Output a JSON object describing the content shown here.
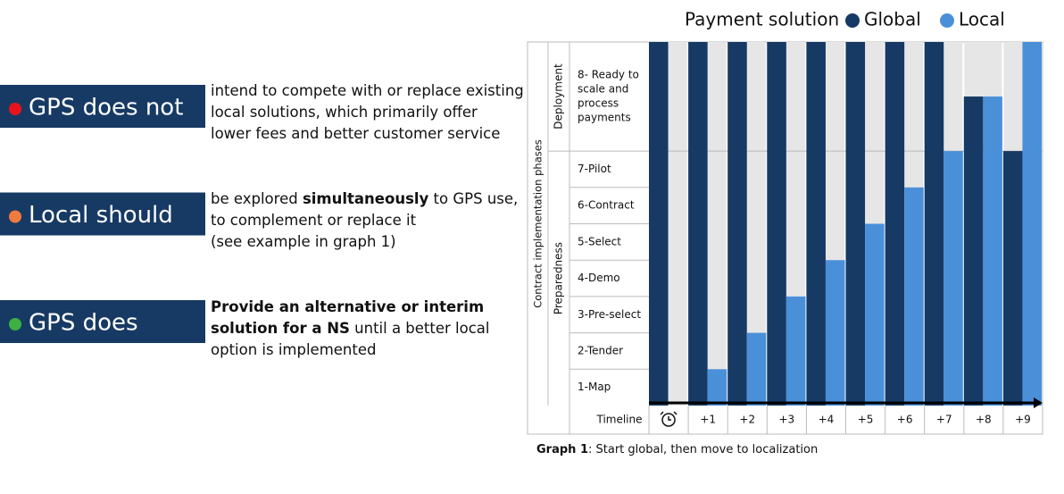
{
  "notes": [
    {
      "label": "GPS does not",
      "dot": "#e8141b",
      "lines": [
        [
          {
            "text": "intend to compete with or replace existing"
          }
        ],
        [
          {
            "text": "local solutions, which primarily offer"
          }
        ],
        [
          {
            "text": "lower fees and better customer service"
          }
        ]
      ]
    },
    {
      "label": "Local should",
      "dot": "#f07b3f",
      "lines": [
        [
          {
            "text": "be explored "
          },
          {
            "text": "simultaneously",
            "bold": true
          },
          {
            "text": " to GPS use,"
          }
        ],
        [
          {
            "text": "to complement or replace it"
          }
        ],
        [
          {
            "text": "(see example in graph 1)"
          }
        ]
      ]
    },
    {
      "label": "GPS does",
      "dot": "#3cb043",
      "lines": [
        [
          {
            "text": "Provide an alternative or interim",
            "bold": true
          }
        ],
        [
          {
            "text": "solution for a NS",
            "bold": true
          },
          {
            "text": " until a better local"
          }
        ],
        [
          {
            "text": "option is implemented"
          }
        ]
      ]
    }
  ],
  "chart_data": {
    "type": "bar",
    "legend_title": "Payment solution",
    "x_label": "Timeline",
    "y_label": "Contract implementation phases",
    "phase_groups": [
      {
        "label": "Deployment"
      },
      {
        "label": "Preparedness"
      }
    ],
    "phases": [
      [
        "1-Map"
      ],
      [
        "2-Tender"
      ],
      [
        "3-Pre-select"
      ],
      [
        "4-Demo"
      ],
      [
        "5-Select"
      ],
      [
        "6-Contract"
      ],
      [
        "7-Pilot"
      ],
      [
        "8- Ready to",
        "scale and",
        "process",
        "payments"
      ]
    ],
    "categories": [
      null,
      "+1",
      "+2",
      "+3",
      "+4",
      "+5",
      "+6",
      "+7",
      "+8",
      "+9"
    ],
    "ylim": [
      0,
      10
    ],
    "series": [
      {
        "name": "Global",
        "color": "#173a64",
        "values": [
          10,
          10,
          10,
          10,
          10,
          10,
          10,
          10,
          8.5,
          7
        ]
      },
      {
        "name": "Local",
        "color": "#4a90d9",
        "values": [
          0,
          1,
          2,
          3,
          4,
          5,
          6,
          7,
          8.5,
          10
        ]
      }
    ],
    "caption": [
      {
        "text": "Graph 1",
        "bold": true
      },
      {
        "text": ": Start global, then move to localization"
      }
    ]
  }
}
